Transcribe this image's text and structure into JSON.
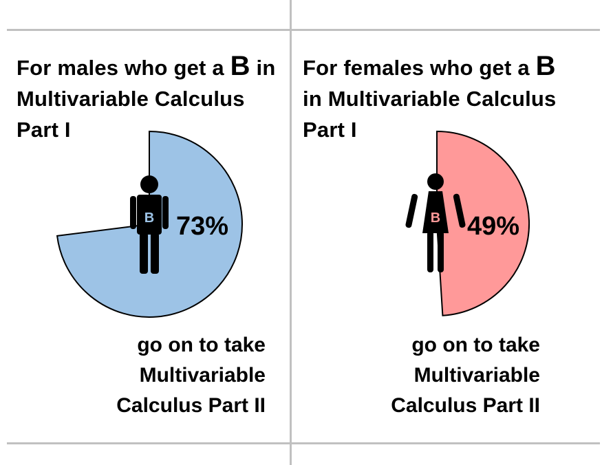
{
  "chart_data": [
    {
      "type": "pie",
      "heading": {
        "prefix": "For males who get a ",
        "grade": "B",
        "suffix": " in Multivariable Calculus Part I"
      },
      "value": 73,
      "label": "73%",
      "icon_letter": "B",
      "caption": "go on to take Multivariable Calculus Part II",
      "slice_color": "#9dc3e6",
      "icon": "male-figure-icon"
    },
    {
      "type": "pie",
      "heading": {
        "prefix": "For females who get a ",
        "grade": "B",
        "suffix": " in Multivariable Calculus Part I"
      },
      "value": 49,
      "label": "49%",
      "icon_letter": "B",
      "caption": "go on to take Multivariable Calculus Part II",
      "slice_color": "#ff9999",
      "icon": "female-figure-icon"
    }
  ]
}
